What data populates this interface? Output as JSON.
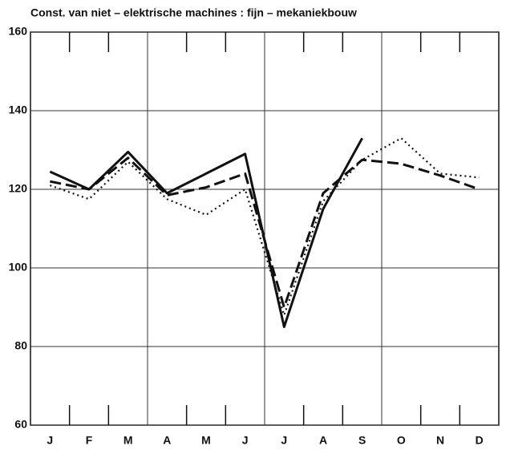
{
  "chart_data": {
    "type": "line",
    "title": "Const. van niet – elektrische machines : fijn – mekaniekbouw",
    "categories": [
      "J",
      "F",
      "M",
      "A",
      "M",
      "J",
      "J",
      "A",
      "S",
      "O",
      "N",
      "D"
    ],
    "series": [
      {
        "color": "#111111",
        "style": "solid",
        "values": [
          124.5,
          120,
          129.5,
          119,
          124,
          129,
          85,
          115,
          133,
          null,
          null,
          null
        ]
      },
      {
        "color": "#111111",
        "style": "dashed",
        "values": [
          122,
          120,
          128,
          118.5,
          120.5,
          124,
          90,
          119,
          127.5,
          126.5,
          123.5,
          120
        ]
      },
      {
        "color": "#111111",
        "style": "dotted",
        "values": [
          121,
          117.5,
          127,
          117.5,
          113.5,
          120,
          88,
          117,
          127.5,
          133,
          124,
          123
        ]
      }
    ],
    "ylim": [
      60,
      160
    ],
    "yticks": [
      60,
      80,
      100,
      120,
      140,
      160
    ],
    "grid": true
  }
}
